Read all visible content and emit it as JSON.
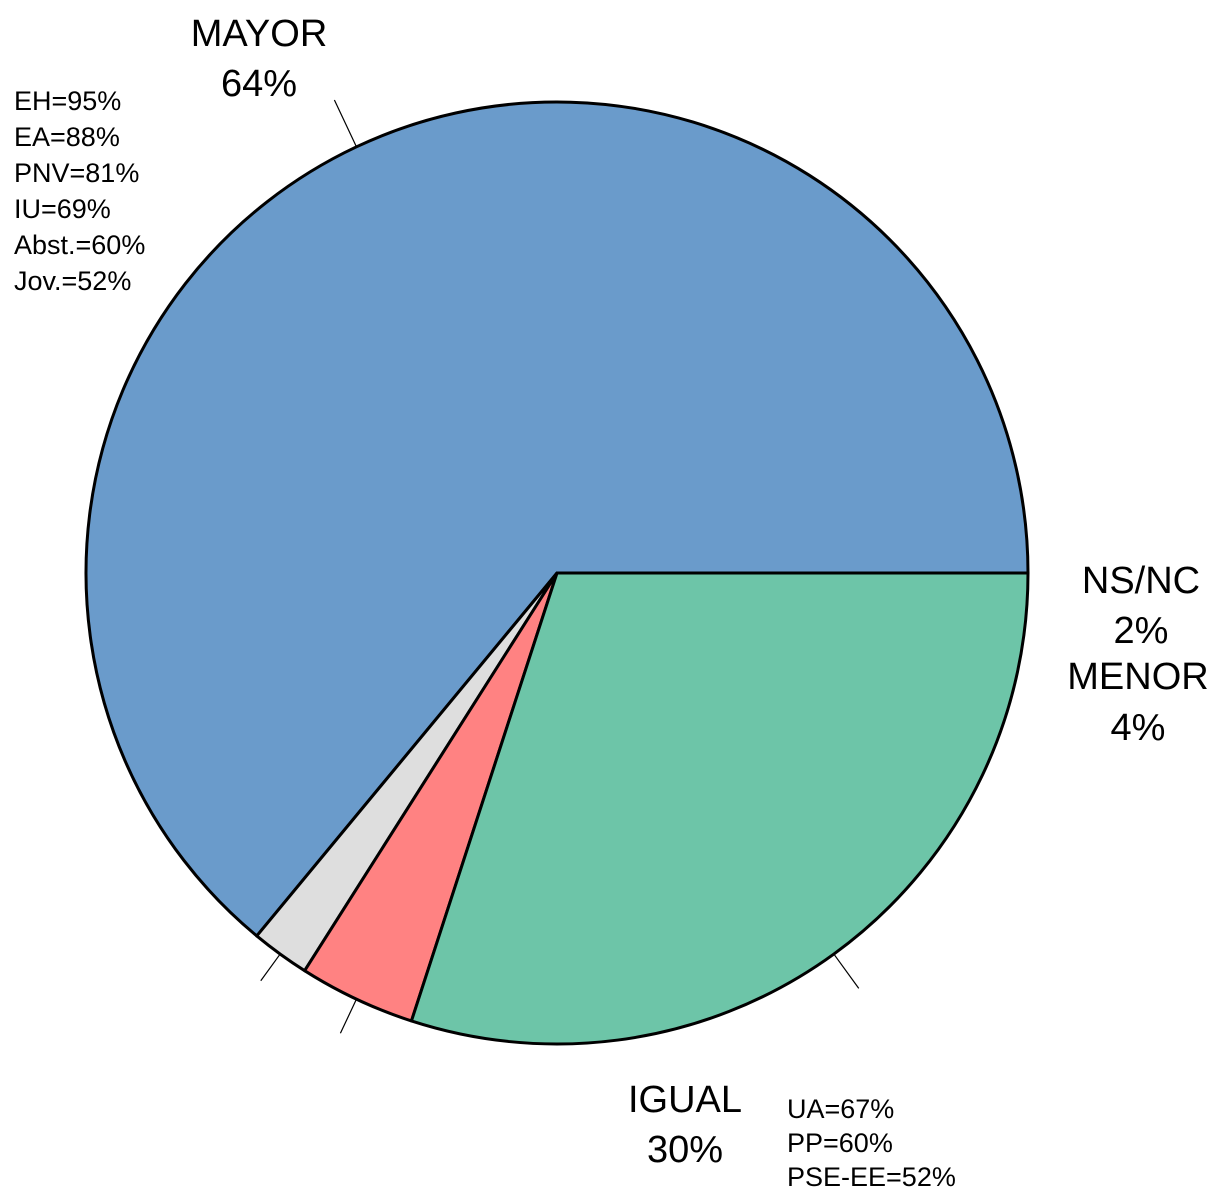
{
  "chart_data": {
    "type": "pie",
    "title": "",
    "slices": [
      {
        "label": "MAYOR",
        "value": 64,
        "value_label": "64%",
        "color": "#6a9bcb",
        "breakdown": [
          "EH=95%",
          "EA=88%",
          "PNV=81%",
          "IU=69%",
          "Abst.=60%",
          "Jov.=52%"
        ]
      },
      {
        "label": "NS/NC",
        "value": 2,
        "value_label": "2%",
        "color": "#dedede",
        "breakdown": []
      },
      {
        "label": "MENOR",
        "value": 4,
        "value_label": "4%",
        "color": "#ff8282",
        "breakdown": []
      },
      {
        "label": "IGUAL",
        "value": 30,
        "value_label": "30%",
        "color": "#6dc5a8",
        "breakdown": [
          "UA=67%",
          "PP=60%",
          "PSE-EE=52%"
        ]
      }
    ],
    "legend": "none",
    "start_angle": "3 o'clock",
    "direction": "counter-clockwise"
  }
}
